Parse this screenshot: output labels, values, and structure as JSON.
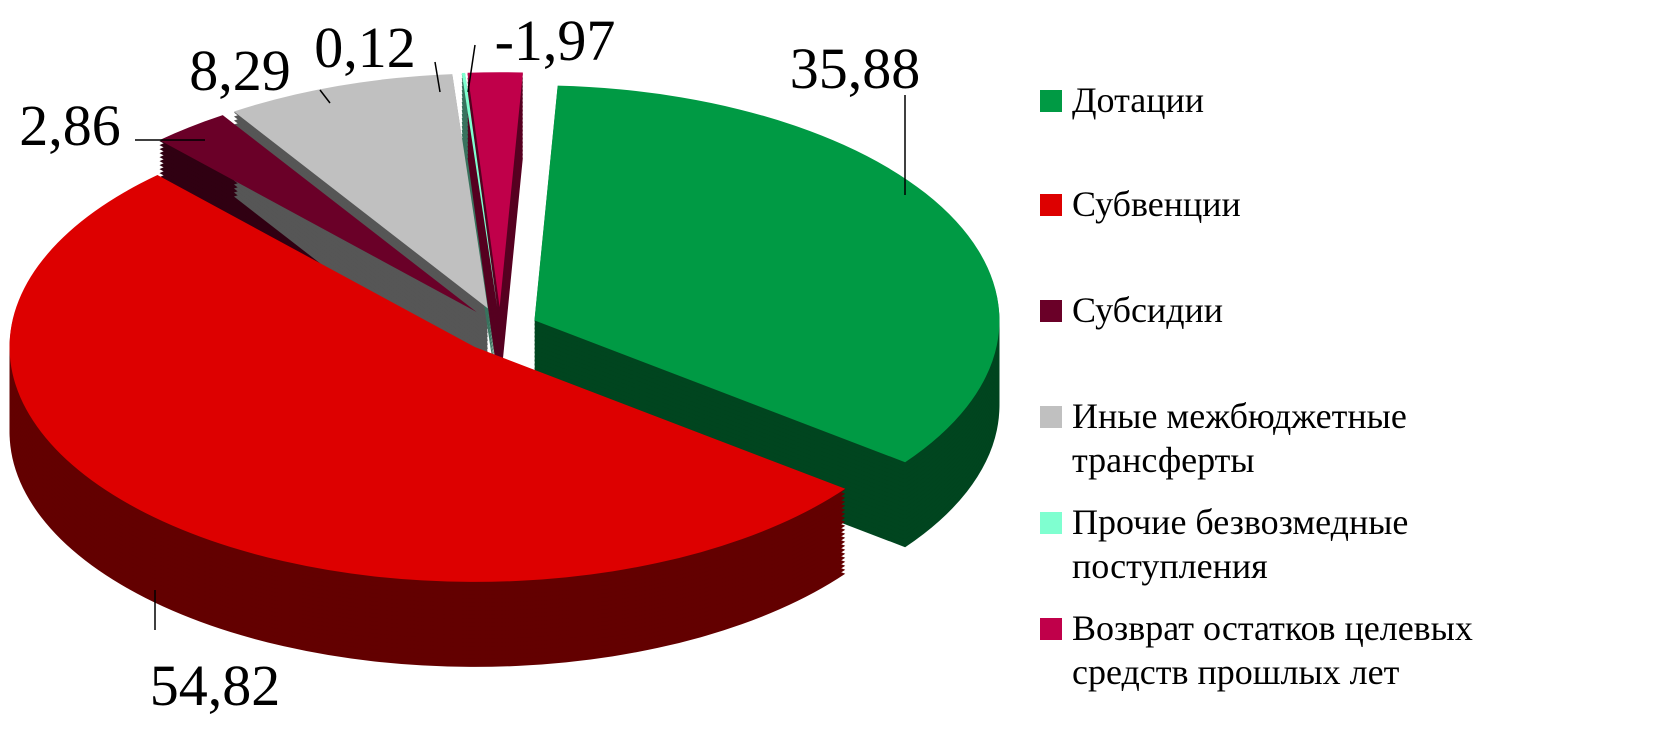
{
  "chart_data": {
    "type": "pie",
    "categories": [
      "Дотации",
      "Субвенции",
      "Субсидии",
      "Иные межбюджетные трансферты",
      "Прочие безвозмедные поступления",
      "Возврат остатков целевых средств прошлых лет"
    ],
    "values": [
      35.88,
      54.82,
      2.86,
      8.29,
      0.12,
      -1.97
    ],
    "value_labels": [
      "35,88",
      "54,82",
      "2,86",
      "8,29",
      "0,12",
      "-1,97"
    ],
    "colors": [
      "#009a44",
      "#dd0000",
      "#6a0028",
      "#c0c0c0",
      "#7fffd0",
      "#c0004a"
    ],
    "legend": "right"
  }
}
